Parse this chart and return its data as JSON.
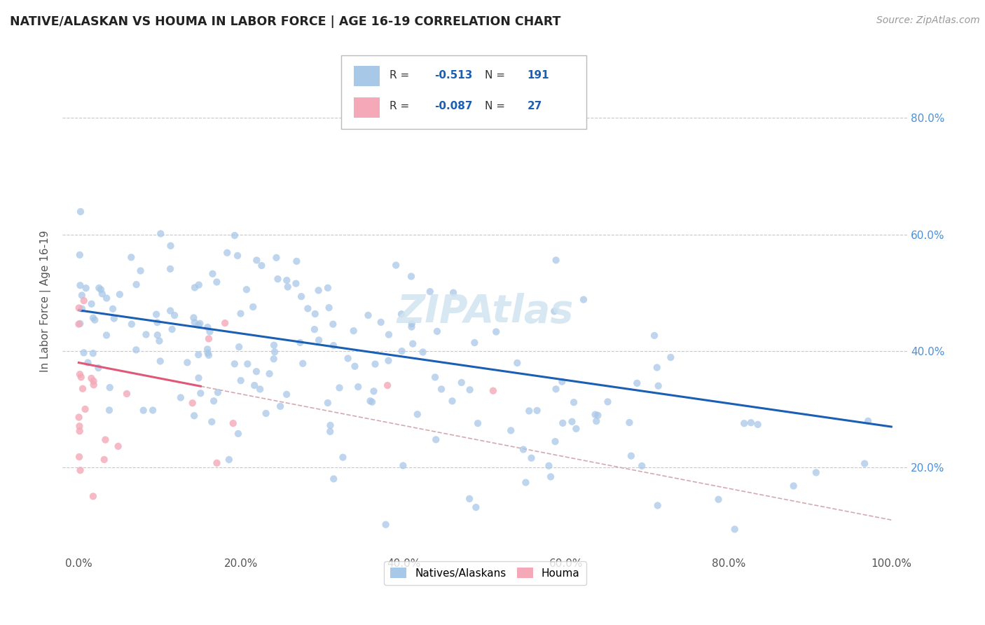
{
  "title": "NATIVE/ALASKAN VS HOUMA IN LABOR FORCE | AGE 16-19 CORRELATION CHART",
  "source": "Source: ZipAtlas.com",
  "ylabel": "In Labor Force | Age 16-19",
  "xlim": [
    -0.02,
    1.02
  ],
  "ylim": [
    0.05,
    0.92
  ],
  "xticks": [
    0.0,
    0.2,
    0.4,
    0.6,
    0.8,
    1.0
  ],
  "xtick_labels": [
    "0.0%",
    "20.0%",
    "40.0%",
    "60.0%",
    "80.0%",
    "100.0%"
  ],
  "ytick_labels": [
    "20.0%",
    "40.0%",
    "60.0%",
    "80.0%"
  ],
  "yticks": [
    0.2,
    0.4,
    0.6,
    0.8
  ],
  "legend_entries": [
    {
      "color": "#a8c4e0",
      "R": "-0.513",
      "N": "191",
      "label": "Natives/Alaskans"
    },
    {
      "color": "#f4b0bc",
      "R": "-0.087",
      "N": "27",
      "label": "Houma"
    }
  ],
  "blue_scatter_color": "#a8c8e8",
  "pink_scatter_color": "#f4a8b8",
  "blue_line_color": "#1a5fb4",
  "pink_line_color": "#e05878",
  "dashed_line_color": "#d0a0a8",
  "watermark_color": "#d0e4f0",
  "background_color": "#ffffff",
  "grid_color": "#c8c8c8",
  "right_tick_color": "#4a90d9",
  "seed": 123
}
